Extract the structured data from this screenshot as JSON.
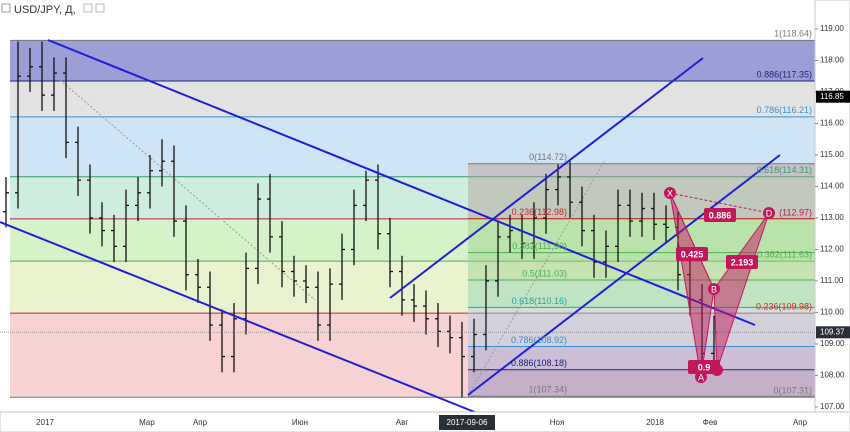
{
  "chart_data": {
    "type": "ohlc",
    "title": "USD/JPY, Д,",
    "color": "#111111",
    "ylim": [
      106.84,
      119.92
    ],
    "yticks": [
      {
        "value": 107,
        "label": "107.00"
      },
      {
        "value": 108,
        "label": "108.00"
      },
      {
        "value": 109,
        "label": "109.00"
      },
      {
        "value": 110,
        "label": "110.00"
      },
      {
        "value": 111,
        "label": "111.00"
      },
      {
        "value": 112,
        "label": "112.00"
      },
      {
        "value": 113,
        "label": "113.00"
      },
      {
        "value": 114,
        "label": "114.00"
      },
      {
        "value": 115,
        "label": "115.00"
      },
      {
        "value": 116,
        "label": "116.00"
      },
      {
        "value": 117,
        "label": "117.00"
      },
      {
        "value": 118,
        "label": "118.00"
      },
      {
        "value": 119,
        "label": "119.00"
      }
    ],
    "price_markers": [
      {
        "value": 116.85,
        "label": "116.85",
        "color": "#000000"
      },
      {
        "value": 109.37,
        "label": "109.37",
        "color": "#2a2e39"
      }
    ],
    "time_labels": [
      "2017",
      "Мар",
      "Апр",
      "Июн",
      "Авг",
      "2017-09-06",
      "Ноя",
      "2018",
      "Фев",
      "Апр"
    ],
    "bars": [
      [
        113.2,
        114.3,
        112.7,
        113.8
      ],
      [
        113.8,
        118.6,
        113.3,
        117.5
      ],
      [
        117.5,
        118.4,
        117.0,
        117.8
      ],
      [
        117.8,
        118.6,
        116.4,
        116.9
      ],
      [
        116.9,
        118.1,
        116.4,
        117.6
      ],
      [
        117.6,
        118.1,
        114.9,
        115.4
      ],
      [
        115.4,
        115.9,
        113.7,
        114.2
      ],
      [
        114.2,
        114.7,
        112.5,
        113.0
      ],
      [
        113.0,
        113.5,
        112.1,
        112.6
      ],
      [
        112.6,
        113.1,
        111.6,
        112.1
      ],
      [
        112.1,
        113.9,
        111.6,
        113.4
      ],
      [
        113.4,
        114.3,
        112.9,
        113.8
      ],
      [
        113.8,
        115.0,
        113.3,
        114.5
      ],
      [
        114.5,
        115.5,
        114.0,
        114.8
      ],
      [
        114.8,
        115.3,
        112.4,
        112.9
      ],
      [
        112.9,
        113.4,
        110.7,
        111.2
      ],
      [
        111.2,
        111.7,
        110.3,
        110.8
      ],
      [
        110.8,
        111.3,
        109.1,
        109.6
      ],
      [
        109.6,
        110.1,
        108.1,
        108.6
      ],
      [
        108.6,
        110.3,
        108.1,
        109.8
      ],
      [
        109.8,
        111.9,
        109.3,
        111.4
      ],
      [
        111.4,
        114.1,
        110.9,
        113.6
      ],
      [
        113.6,
        114.4,
        111.9,
        112.4
      ],
      [
        112.4,
        112.9,
        110.8,
        111.3
      ],
      [
        111.3,
        111.8,
        110.5,
        111.0
      ],
      [
        111.0,
        111.5,
        110.3,
        110.8
      ],
      [
        110.8,
        111.3,
        109.1,
        109.6
      ],
      [
        109.6,
        111.4,
        109.1,
        110.9
      ],
      [
        110.9,
        112.5,
        110.4,
        112.0
      ],
      [
        112.0,
        113.9,
        111.5,
        113.4
      ],
      [
        113.4,
        114.5,
        112.9,
        114.2
      ],
      [
        114.2,
        114.7,
        112.0,
        112.5
      ],
      [
        112.5,
        113.0,
        110.8,
        111.3
      ],
      [
        111.3,
        111.8,
        109.9,
        110.4
      ],
      [
        110.4,
        110.9,
        109.7,
        110.2
      ],
      [
        110.2,
        110.7,
        109.3,
        109.8
      ],
      [
        109.8,
        110.3,
        108.9,
        109.4
      ],
      [
        109.4,
        109.9,
        108.7,
        109.2
      ],
      [
        109.2,
        109.7,
        107.3,
        108.6
      ],
      [
        108.6,
        109.8,
        108.1,
        109.3
      ],
      [
        109.3,
        111.5,
        108.8,
        111.0
      ],
      [
        111.0,
        112.9,
        110.5,
        112.4
      ],
      [
        112.4,
        113.1,
        111.9,
        112.6
      ],
      [
        112.6,
        113.1,
        111.7,
        112.2
      ],
      [
        112.2,
        113.5,
        111.7,
        113.0
      ],
      [
        113.0,
        114.4,
        112.5,
        113.9
      ],
      [
        113.9,
        114.7,
        113.4,
        114.3
      ],
      [
        114.3,
        114.8,
        113.0,
        113.5
      ],
      [
        113.5,
        114.0,
        112.1,
        112.6
      ],
      [
        112.6,
        113.1,
        111.1,
        111.6
      ],
      [
        111.6,
        112.6,
        111.1,
        112.1
      ],
      [
        112.1,
        113.9,
        111.6,
        113.4
      ],
      [
        113.4,
        113.9,
        112.4,
        112.9
      ],
      [
        112.9,
        113.8,
        112.4,
        113.3
      ],
      [
        113.3,
        113.8,
        112.3,
        112.8
      ],
      [
        112.8,
        113.4,
        112.2,
        112.7
      ],
      [
        112.7,
        113.2,
        110.7,
        111.2
      ],
      [
        111.2,
        111.7,
        109.9,
        110.4
      ],
      [
        110.4,
        110.9,
        108.2,
        108.7
      ],
      [
        108.7,
        109.9,
        108.3,
        109.37
      ]
    ],
    "fib_main": [
      {
        "value": 118.64,
        "label": "1(118.64)",
        "color": "#787878",
        "fill": "#9c9ed8"
      },
      {
        "value": 117.35,
        "label": "0.886(117.35)",
        "color": "#1a237e",
        "fill": "#e3e3e3"
      },
      {
        "value": 116.21,
        "label": "0.786(116.21)",
        "color": "#3b8ed0",
        "fill": "#cfe5f5"
      },
      {
        "value": 114.31,
        "label": "0.618(114.31)",
        "color": "#3a9a6a",
        "fill": "#cdeedf"
      },
      {
        "value": 112.97,
        "label": "(112.97)",
        "color": "#c2185b",
        "fill": "#d6f2c8"
      },
      {
        "value": 111.63,
        "label": "0.382(111.63)",
        "color": "#4caf50",
        "fill": "#e9f3cf"
      },
      {
        "value": 109.98,
        "label": "0.236(109.98)",
        "color": "#c62828",
        "fill": "#f6d2d2"
      },
      {
        "value": 107.31,
        "label": "0(107.31)",
        "color": "#787878"
      }
    ],
    "fib_second": [
      {
        "value": 114.72,
        "label": "0(114.72)",
        "color": "#787878",
        "fill": "#b49a92"
      },
      {
        "value": 112.98,
        "label": "0.236(112.98)",
        "color": "#c62828",
        "fill": "#9ad08a"
      },
      {
        "value": 111.9,
        "label": "0.382(111.90)",
        "color": "#4caf50",
        "fill": "#9ad08a"
      },
      {
        "value": 111.03,
        "label": "0.5(111.03)",
        "color": "#4caf50",
        "fill": "#8fd0b0"
      },
      {
        "value": 110.16,
        "label": "0.618(110.16)",
        "color": "#26a69a",
        "fill": "#a9cbe6"
      },
      {
        "value": 108.92,
        "label": "0.786(108.92)",
        "color": "#3b8ed0",
        "fill": "#9aa6d6"
      },
      {
        "value": 108.18,
        "label": "0.886(108.18)",
        "color": "#1a237e",
        "fill": "#8c84c4"
      },
      {
        "value": 107.34,
        "label": "1(107.34)",
        "color": "#787878"
      }
    ],
    "pattern": {
      "points": [
        "X",
        "A",
        "B",
        "C",
        "D"
      ],
      "ratios": [
        0.886,
        0.425,
        2.193,
        0.9
      ],
      "color": "#c2185b"
    }
  }
}
